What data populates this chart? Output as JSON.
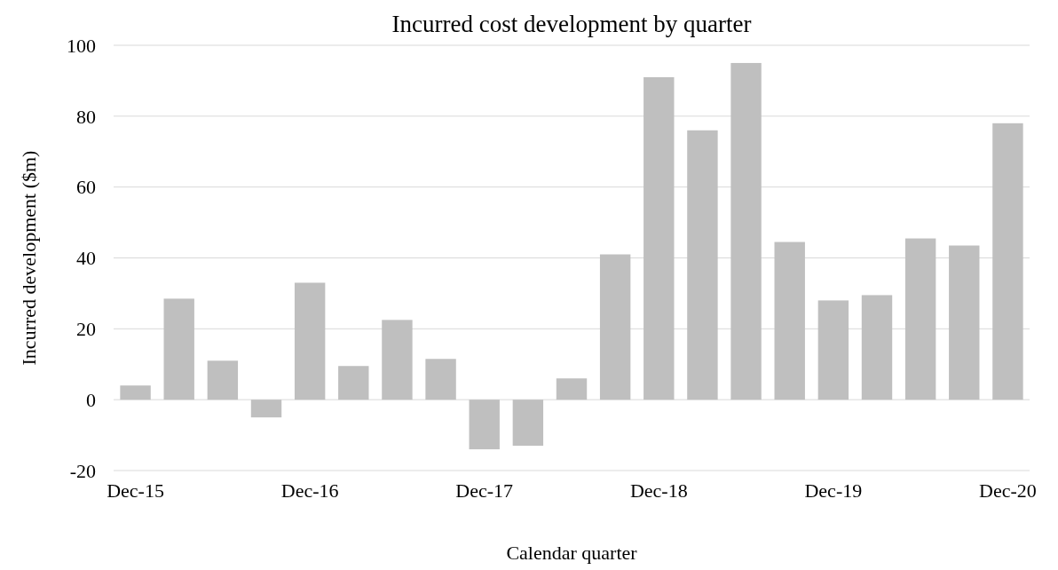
{
  "chart_data": {
    "type": "bar",
    "title": "Incurred cost development  by quarter",
    "xlabel": "Calendar quarter",
    "ylabel": "Incurred development ($m)",
    "categories": [
      "Dec-15",
      null,
      null,
      null,
      "Dec-16",
      null,
      null,
      null,
      "Dec-17",
      null,
      null,
      null,
      "Dec-18",
      null,
      null,
      null,
      "Dec-19",
      null,
      null,
      null,
      "Dec-20"
    ],
    "values": [
      4,
      28.5,
      11,
      -5,
      33,
      9.5,
      22.5,
      11.5,
      -14,
      -13,
      6,
      41,
      91,
      76,
      95,
      44.5,
      28,
      29.5,
      45.5,
      43.5,
      78
    ],
    "color": "#bfbfbf",
    "ylim": [
      -20,
      100
    ],
    "yticks": [
      -20,
      0,
      20,
      40,
      60,
      80,
      100
    ],
    "grid": "y"
  }
}
